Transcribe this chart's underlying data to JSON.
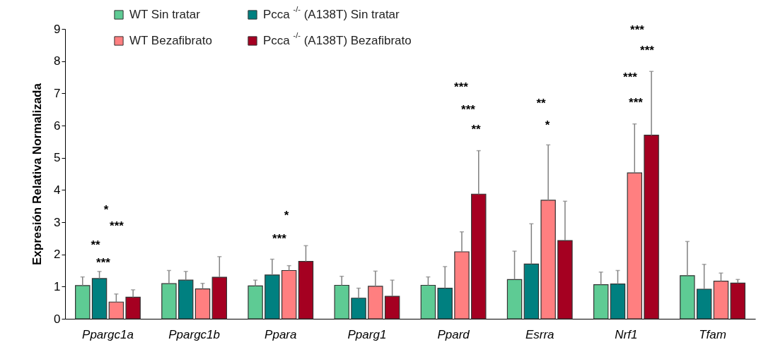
{
  "chart_data": {
    "type": "bar",
    "ylabel": "Expresión Relativa Normalizada",
    "categories": [
      "Ppargc1a",
      "Ppargc1b",
      "Ppara",
      "Pparg1",
      "Ppard",
      "Esrra",
      "Nrf1",
      "Tfam"
    ],
    "series": [
      {
        "name": "WT Sin tratar",
        "color": "#5ecb94",
        "values": [
          1.03,
          1.09,
          1.02,
          1.04,
          1.04,
          1.22,
          1.06,
          1.34
        ],
        "errors": [
          [
            1.03,
            1.3
          ],
          [
            1.09,
            1.5
          ],
          [
            1.02,
            1.2
          ],
          [
            1.04,
            1.32
          ],
          [
            1.04,
            1.3
          ],
          [
            1.22,
            2.1
          ],
          [
            1.06,
            1.45
          ],
          [
            1.34,
            2.4
          ]
        ]
      },
      {
        "name": "Pcca $^{-/-}$ (A138T) Sin tratar",
        "color": "#008080",
        "values": [
          1.25,
          1.2,
          1.36,
          0.64,
          0.95,
          1.7,
          1.08,
          0.92
        ],
        "errors": [
          [
            1.25,
            1.47
          ],
          [
            1.2,
            1.47
          ],
          [
            1.36,
            1.85
          ],
          [
            0.64,
            0.95
          ],
          [
            0.95,
            1.62
          ],
          [
            1.7,
            2.95
          ],
          [
            1.08,
            1.5
          ],
          [
            0.92,
            1.69
          ]
        ]
      },
      {
        "name": "WT Bezafibrato",
        "color": "#ff7f80",
        "values": [
          0.52,
          0.93,
          1.5,
          1.01,
          2.08,
          3.68,
          4.53,
          1.17
        ],
        "errors": [
          [
            0.52,
            0.77
          ],
          [
            0.93,
            1.1
          ],
          [
            1.5,
            1.65
          ],
          [
            1.01,
            1.48
          ],
          [
            2.08,
            2.7
          ],
          [
            3.68,
            5.4
          ],
          [
            4.53,
            6.05
          ],
          [
            1.17,
            1.42
          ]
        ]
      },
      {
        "name": "Pcca $^{-/-}$ (A138T) Bezafibrato",
        "color": "#a50021",
        "values": [
          0.67,
          1.29,
          1.78,
          0.7,
          3.87,
          2.43,
          5.7,
          1.11
        ],
        "errors": [
          [
            0.67,
            0.9
          ],
          [
            1.29,
            1.93
          ],
          [
            1.78,
            2.27
          ],
          [
            0.7,
            1.2
          ],
          [
            3.87,
            5.22
          ],
          [
            2.43,
            3.65
          ],
          [
            5.7,
            7.68
          ],
          [
            1.11,
            1.22
          ]
        ]
      }
    ],
    "ylim": [
      0,
      9
    ],
    "yticks": [
      0,
      1,
      2,
      3,
      4,
      5,
      6,
      7,
      8,
      9
    ],
    "grid": false,
    "legend": "top",
    "annotations": [
      "*",
      "***",
      "**",
      "***",
      "*",
      "***",
      "***",
      "***",
      "**",
      "**",
      "*",
      "***",
      "***",
      "***",
      "***"
    ]
  }
}
